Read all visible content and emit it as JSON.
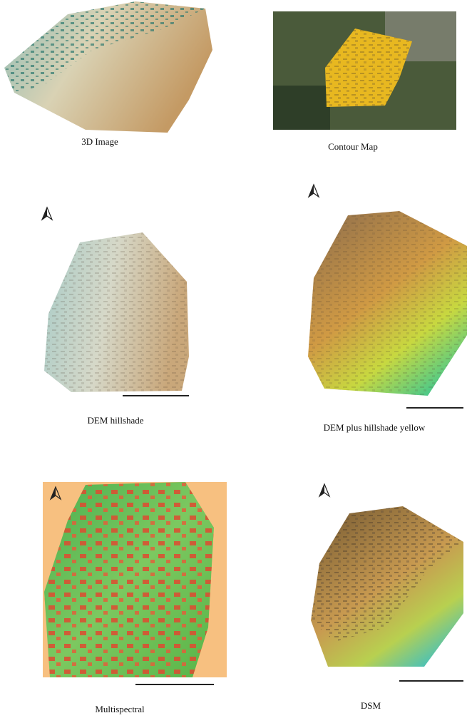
{
  "figure": {
    "panels": [
      {
        "caption": "3D Image"
      },
      {
        "caption": "Contour Map"
      },
      {
        "caption": "DEM hillshade"
      },
      {
        "caption": "DEM plus hillshade yellow"
      },
      {
        "caption": "Multispectral"
      },
      {
        "caption": "DSM"
      }
    ]
  }
}
